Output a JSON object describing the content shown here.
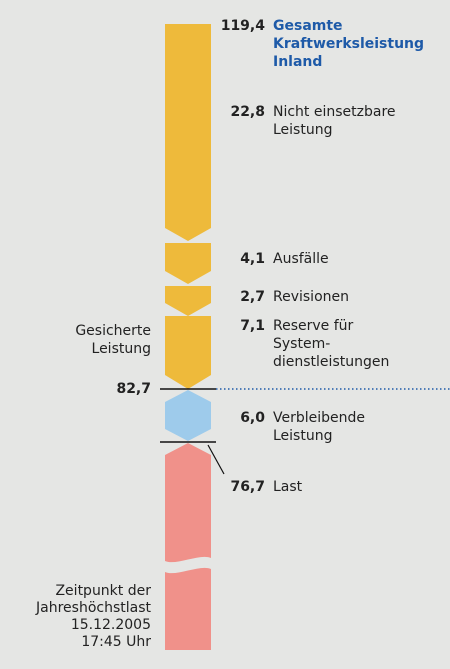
{
  "colors": {
    "background": "#e5e6e4",
    "capacity": "#eeba3b",
    "remaining": "#9ecbeb",
    "load": "#f0918a",
    "heading": "#1e5aa8"
  },
  "items": [
    {
      "value": "119,4",
      "label": [
        "Gesamte",
        "Kraftwerksleistung",
        "Inland"
      ]
    },
    {
      "value": "22,8",
      "label": [
        "Nicht einsetzbare",
        "Leistung"
      ]
    },
    {
      "value": "4,1",
      "label": [
        "Ausfälle"
      ]
    },
    {
      "value": "2,7",
      "label": [
        "Revisionen"
      ]
    },
    {
      "value": "7,1",
      "label": [
        "Reserve für",
        "System-",
        "dienstleistungen"
      ]
    },
    {
      "value": "6,0",
      "label": [
        "Verbleibende",
        "Leistung"
      ]
    },
    {
      "value": "76,7",
      "label": [
        "Last"
      ]
    }
  ],
  "secured": {
    "label": [
      "Gesicherte",
      "Leistung"
    ],
    "value": "82,7"
  },
  "peak": {
    "label": [
      "Zeitpunkt der",
      "Jahreshöchstlast",
      "15.12.2005",
      "17:45 Uhr"
    ]
  }
}
